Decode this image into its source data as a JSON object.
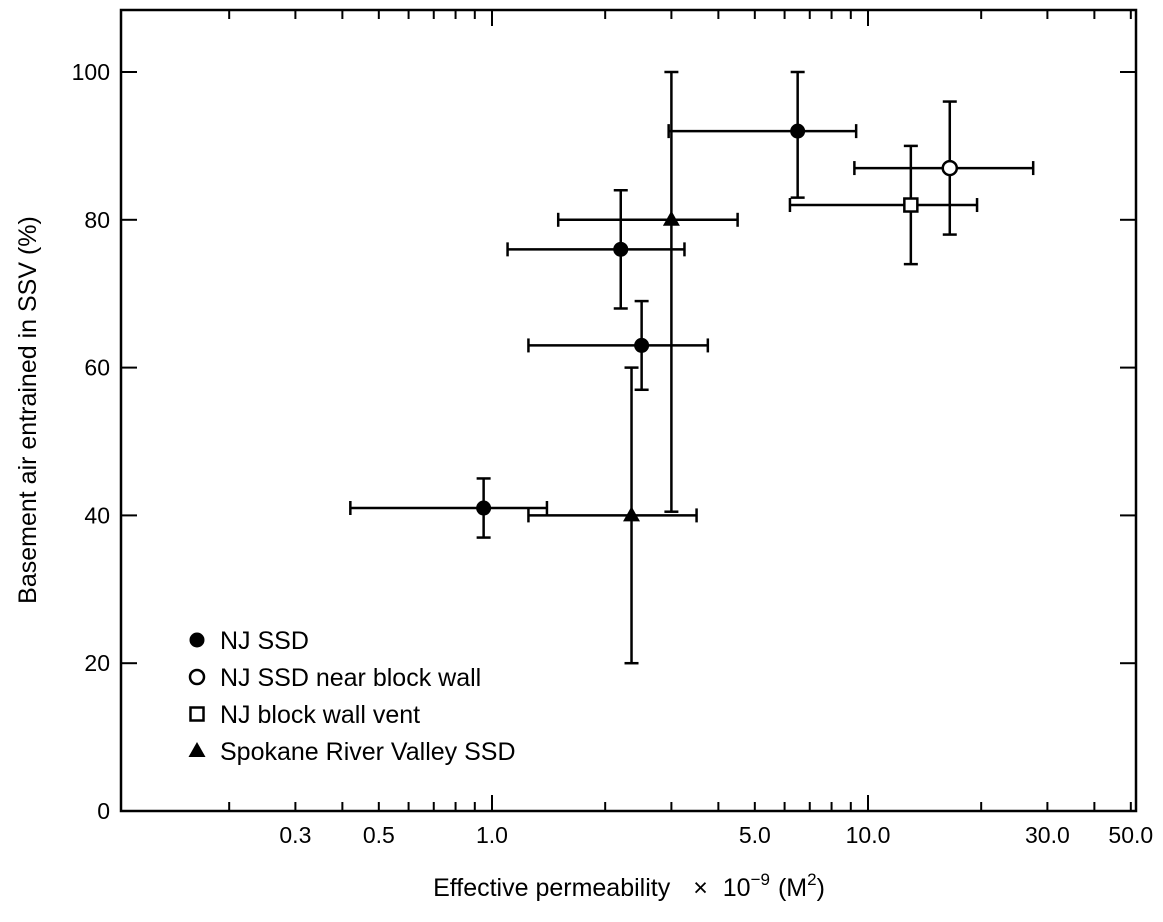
{
  "chart_data": {
    "type": "scatter",
    "xscale": "log",
    "xlim": [
      0.1,
      50
    ],
    "ylim": [
      0,
      108
    ],
    "grid": false,
    "legend_position": "bottom-left",
    "xlabel": {
      "prefix": "Effective permeability",
      "times": "×",
      "base": "10",
      "exponent": "−9",
      "unit_open": "(M",
      "unit_exponent": "2",
      "unit_close": ")"
    },
    "ylabel": "Basement air entrained in SSV (%)",
    "x_ticks": [
      {
        "value": 0.3,
        "label": "0.3"
      },
      {
        "value": 0.5,
        "label": "0.5"
      },
      {
        "value": 1.0,
        "label": "1.0"
      },
      {
        "value": 5.0,
        "label": "5.0"
      },
      {
        "value": 10.0,
        "label": "10.0"
      },
      {
        "value": 30.0,
        "label": "30.0"
      },
      {
        "value": 50.0,
        "label": "50.0"
      }
    ],
    "y_ticks": [
      {
        "value": 0,
        "label": "0"
      },
      {
        "value": 20,
        "label": "20"
      },
      {
        "value": 40,
        "label": "40"
      },
      {
        "value": 60,
        "label": "60"
      },
      {
        "value": 80,
        "label": "80"
      },
      {
        "value": 100,
        "label": "100"
      }
    ],
    "series": [
      {
        "name": "NJ SSD",
        "marker": "filled-circle",
        "points": [
          {
            "x": 0.95,
            "y": 41,
            "x_err": [
              0.42,
              1.4
            ],
            "y_err": [
              37,
              45
            ]
          },
          {
            "x": 2.2,
            "y": 76,
            "x_err": [
              1.1,
              3.25
            ],
            "y_err": [
              68,
              84
            ]
          },
          {
            "x": 2.5,
            "y": 63,
            "x_err": [
              1.25,
              3.75
            ],
            "y_err": [
              57,
              69
            ]
          },
          {
            "x": 6.5,
            "y": 92,
            "x_err": [
              2.95,
              9.3
            ],
            "y_err": [
              83,
              100
            ]
          }
        ]
      },
      {
        "name": "NJ SSD near block wall",
        "marker": "open-circle",
        "points": [
          {
            "x": 16.5,
            "y": 87,
            "x_err": [
              9.2,
              27.5
            ],
            "y_err": [
              78,
              96
            ]
          }
        ]
      },
      {
        "name": "NJ block wall vent",
        "marker": "open-square",
        "points": [
          {
            "x": 13.0,
            "y": 82,
            "x_err": [
              6.2,
              19.5
            ],
            "y_err": [
              74,
              90
            ]
          }
        ]
      },
      {
        "name": "Spokane River Valley SSD",
        "marker": "filled-triangle",
        "points": [
          {
            "x": 2.35,
            "y": 40,
            "x_err": [
              1.25,
              3.5
            ],
            "y_err": [
              20,
              60
            ]
          },
          {
            "x": 3.0,
            "y": 80,
            "x_err": [
              1.5,
              4.5
            ],
            "y_err": [
              40.5,
              100
            ]
          }
        ]
      }
    ]
  }
}
